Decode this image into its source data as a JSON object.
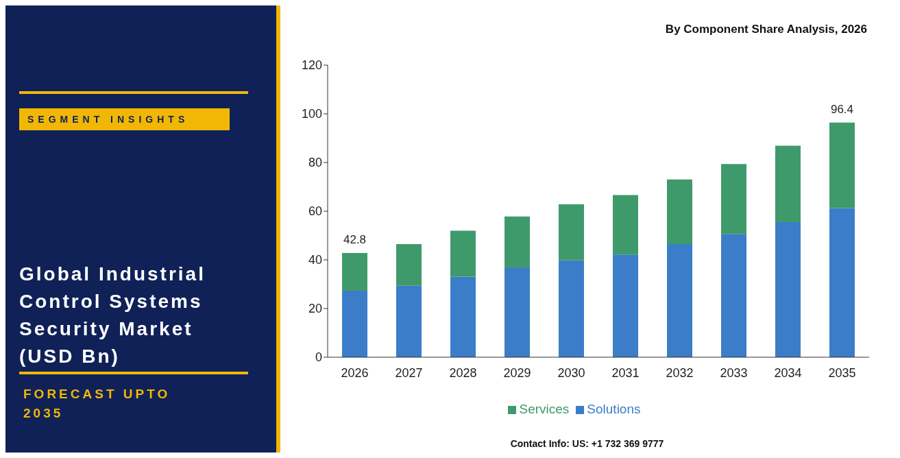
{
  "chart_data": {
    "type": "bar",
    "title": "Global Industrial Control Systems Security Market (USD Bn)",
    "subtitle": "By Component Share Analysis, 2026",
    "annotations": [
      "SEGMENT INSIGHTS",
      "FORECAST UPTO 2035",
      "Contact Info: US: +1 732 369 9777"
    ],
    "categories": [
      "2026",
      "2027",
      "2028",
      "2029",
      "2030",
      "2031",
      "2032",
      "2033",
      "2034",
      "2035"
    ],
    "series": [
      {
        "name": "Solutions",
        "color": "#3b7dc8",
        "values": [
          27.3,
          29.4,
          33.1,
          36.9,
          39.8,
          42.2,
          46.5,
          50.6,
          55.5,
          61.3
        ]
      },
      {
        "name": "Services",
        "color": "#3f9a6b",
        "values": [
          15.5,
          17.1,
          18.9,
          20.9,
          23.0,
          24.4,
          26.5,
          28.8,
          31.4,
          35.1
        ]
      }
    ],
    "stacked": true,
    "totals": [
      "42.8",
      null,
      null,
      null,
      null,
      null,
      null,
      null,
      null,
      "96.4"
    ],
    "ylim": [
      0,
      120
    ],
    "yticks": [
      0,
      20,
      40,
      60,
      80,
      100,
      120
    ],
    "grid": false,
    "legend": "bottom"
  }
}
